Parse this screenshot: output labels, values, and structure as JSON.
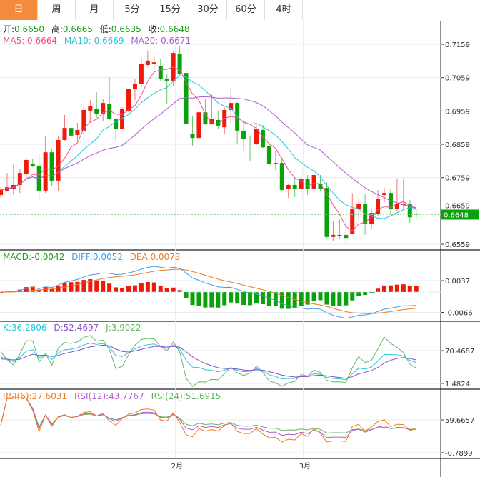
{
  "tabs": [
    {
      "label": "日",
      "active": true
    },
    {
      "label": "周"
    },
    {
      "label": "月"
    },
    {
      "label": "5分"
    },
    {
      "label": "15分"
    },
    {
      "label": "30分"
    },
    {
      "label": "60分"
    },
    {
      "label": "4时"
    }
  ],
  "ohlc_legend": {
    "open_label": "开:",
    "open": "0.6650",
    "high_label": "高:",
    "high": "0.6665",
    "low_label": "低:",
    "low": "0.6635",
    "close_label": "收:",
    "close": "0.6648"
  },
  "ma_legend": {
    "ma5": "MA5: 0.6664",
    "ma10": "MA10: 0.6669",
    "ma20": "MA20: 0.6671"
  },
  "macd_legend": {
    "macd": "MACD:-0.0042",
    "diff": "DIFF:0.0052",
    "dea": "DEA:0.0073"
  },
  "kdj_legend": {
    "k": "K:36.2806",
    "d": "D:52.4697",
    "j": "J:3.9022"
  },
  "rsi_legend": {
    "rsi6": "RSI(6):27.6031",
    "rsi12": "RSI(12):43.7767",
    "rsi24": "RSI(24):51.6915"
  },
  "price_axis": [
    "0.7159",
    "0.7059",
    "0.6959",
    "0.6859",
    "0.6759",
    "0.6659",
    "0.6559"
  ],
  "current_price": "0.6648",
  "macd_axis": [
    "0.0037",
    "-0.0066"
  ],
  "kdj_axis": [
    "70.4687",
    "1.4824"
  ],
  "rsi_axis": [
    "59.6657",
    "-0.7899"
  ],
  "date_axis": [
    {
      "label": "2月",
      "index": 27
    },
    {
      "label": "3月",
      "index": 47
    }
  ],
  "colors": {
    "up": "#f01a0a",
    "down": "#0aa20a",
    "ma5": "#f0508c",
    "ma10": "#28c4dc",
    "ma20": "#b05cd0",
    "diff": "#4a9de0",
    "dea": "#f07a1e",
    "k": "#28c4dc",
    "d": "#8a50d0",
    "j": "#60b860",
    "rsi6": "#f07a1e",
    "rsi12": "#b05cd0",
    "rsi24": "#60b860",
    "badge": "#0aa20a"
  },
  "chart_data": {
    "type": "candlestick",
    "ohlc": [
      [
        0.6707,
        0.673,
        0.67,
        0.6722
      ],
      [
        0.672,
        0.6773,
        0.6718,
        0.673
      ],
      [
        0.6726,
        0.6799,
        0.6707,
        0.6737
      ],
      [
        0.6737,
        0.6784,
        0.6713,
        0.6773
      ],
      [
        0.6771,
        0.6818,
        0.6756,
        0.6812
      ],
      [
        0.6801,
        0.6816,
        0.679,
        0.6793
      ],
      [
        0.6795,
        0.6831,
        0.6688,
        0.672
      ],
      [
        0.672,
        0.6885,
        0.6713,
        0.6835
      ],
      [
        0.6835,
        0.6844,
        0.6733,
        0.675
      ],
      [
        0.675,
        0.6885,
        0.672,
        0.6872
      ],
      [
        0.6872,
        0.6947,
        0.687,
        0.6908
      ],
      [
        0.6908,
        0.6923,
        0.6857,
        0.6885
      ],
      [
        0.6887,
        0.6923,
        0.687,
        0.6902
      ],
      [
        0.69,
        0.6979,
        0.6872,
        0.6962
      ],
      [
        0.696,
        0.6992,
        0.6923,
        0.6973
      ],
      [
        0.6966,
        0.7015,
        0.6938,
        0.6949
      ],
      [
        0.6949,
        0.6994,
        0.6928,
        0.6983
      ],
      [
        0.6981,
        0.706,
        0.6932,
        0.6936
      ],
      [
        0.6936,
        0.6938,
        0.687,
        0.6906
      ],
      [
        0.6906,
        0.697,
        0.6904,
        0.6966
      ],
      [
        0.6958,
        0.7026,
        0.6955,
        0.7024
      ],
      [
        0.7024,
        0.7054,
        0.6992,
        0.7041
      ],
      [
        0.7041,
        0.7118,
        0.703,
        0.7099
      ],
      [
        0.7097,
        0.714,
        0.7093,
        0.711
      ],
      [
        0.7101,
        0.7127,
        0.7082,
        0.7105
      ],
      [
        0.7093,
        0.7116,
        0.705,
        0.7056
      ],
      [
        0.7056,
        0.7071,
        0.6981,
        0.705
      ],
      [
        0.705,
        0.714,
        0.7033,
        0.7133
      ],
      [
        0.7131,
        0.7155,
        0.7067,
        0.7071
      ],
      [
        0.7073,
        0.7078,
        0.6917,
        0.6919
      ],
      [
        0.6889,
        0.6945,
        0.6855,
        0.6878
      ],
      [
        0.6878,
        0.6992,
        0.6877,
        0.6955
      ],
      [
        0.6955,
        0.6994,
        0.6917,
        0.6919
      ],
      [
        0.6919,
        0.7009,
        0.6917,
        0.6934
      ],
      [
        0.6932,
        0.6958,
        0.6906,
        0.6915
      ],
      [
        0.691,
        0.697,
        0.6889,
        0.6962
      ],
      [
        0.6962,
        0.7026,
        0.6921,
        0.6983
      ],
      [
        0.6983,
        0.6985,
        0.6861,
        0.69
      ],
      [
        0.69,
        0.6928,
        0.6838,
        0.6874
      ],
      [
        0.6876,
        0.6885,
        0.681,
        0.6874
      ],
      [
        0.6859,
        0.6917,
        0.6857,
        0.6904
      ],
      [
        0.6902,
        0.6917,
        0.6848,
        0.685
      ],
      [
        0.6853,
        0.6863,
        0.6793,
        0.6801
      ],
      [
        0.6801,
        0.684,
        0.6782,
        0.6803
      ],
      [
        0.6803,
        0.682,
        0.6718,
        0.6722
      ],
      [
        0.6726,
        0.6741,
        0.6698,
        0.6737
      ],
      [
        0.6737,
        0.6756,
        0.67,
        0.6726
      ],
      [
        0.6726,
        0.6782,
        0.6694,
        0.6756
      ],
      [
        0.6756,
        0.6767,
        0.6707,
        0.6726
      ],
      [
        0.6726,
        0.6767,
        0.672,
        0.6767
      ],
      [
        0.6741,
        0.6767,
        0.6718,
        0.6726
      ],
      [
        0.6728,
        0.6745,
        0.6578,
        0.6581
      ],
      [
        0.6581,
        0.6628,
        0.6568,
        0.6587
      ],
      [
        0.6586,
        0.6634,
        0.6576,
        0.6587
      ],
      [
        0.6587,
        0.6638,
        0.6563,
        0.6578
      ],
      [
        0.6591,
        0.6713,
        0.6589,
        0.6664
      ],
      [
        0.6664,
        0.6698,
        0.663,
        0.6681
      ],
      [
        0.6681,
        0.6709,
        0.6587,
        0.6619
      ],
      [
        0.6619,
        0.6666,
        0.6606,
        0.6653
      ],
      [
        0.6649,
        0.6722,
        0.6643,
        0.6696
      ],
      [
        0.6707,
        0.6728,
        0.6685,
        0.6713
      ],
      [
        0.6713,
        0.6724,
        0.6647,
        0.6664
      ],
      [
        0.6664,
        0.6756,
        0.666,
        0.6681
      ],
      [
        0.6677,
        0.6754,
        0.6666,
        0.6679
      ],
      [
        0.6679,
        0.6692,
        0.6623,
        0.664
      ],
      [
        0.665,
        0.6665,
        0.6635,
        0.6648
      ]
    ],
    "price_range": [
      0.6559,
      0.7159
    ]
  }
}
